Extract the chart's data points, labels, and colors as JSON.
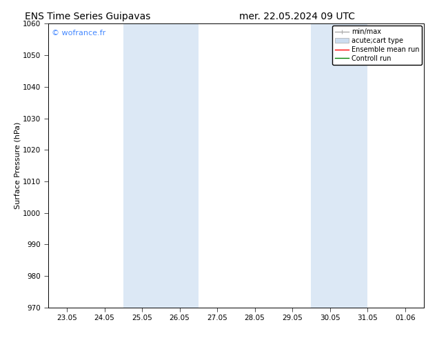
{
  "title_left": "ENS Time Series Guipavas",
  "title_right": "mer. 22.05.2024 09 UTC",
  "ylabel": "Surface Pressure (hPa)",
  "ylim": [
    970,
    1060
  ],
  "yticks": [
    970,
    980,
    990,
    1000,
    1010,
    1020,
    1030,
    1040,
    1050,
    1060
  ],
  "xtick_labels": [
    "23.05",
    "24.05",
    "25.05",
    "26.05",
    "27.05",
    "28.05",
    "29.05",
    "30.05",
    "31.05",
    "01.06"
  ],
  "xtick_positions": [
    0,
    1,
    2,
    3,
    4,
    5,
    6,
    7,
    8,
    9
  ],
  "xlim": [
    -0.5,
    9.5
  ],
  "shaded_regions": [
    {
      "xmin": 2.0,
      "xmax": 4.0,
      "color": "#dce8f5"
    },
    {
      "xmin": 7.0,
      "xmax": 8.5,
      "color": "#dce8f5"
    }
  ],
  "watermark": "© wofrance.fr",
  "watermark_color": "#4488ff",
  "legend_entries": [
    {
      "label": "min/max",
      "color": "#aaaaaa",
      "lw": 1.0,
      "style": "minmax"
    },
    {
      "label": "acute;cart type",
      "color": "#ccddf0",
      "lw": 5,
      "style": "bar"
    },
    {
      "label": "Ensemble mean run",
      "color": "red",
      "lw": 1.0,
      "style": "line"
    },
    {
      "label": "Controll run",
      "color": "green",
      "lw": 1.0,
      "style": "line"
    }
  ],
  "grid_color": "#dddddd",
  "background_color": "#ffffff",
  "title_fontsize": 10,
  "label_fontsize": 8,
  "tick_fontsize": 7.5
}
